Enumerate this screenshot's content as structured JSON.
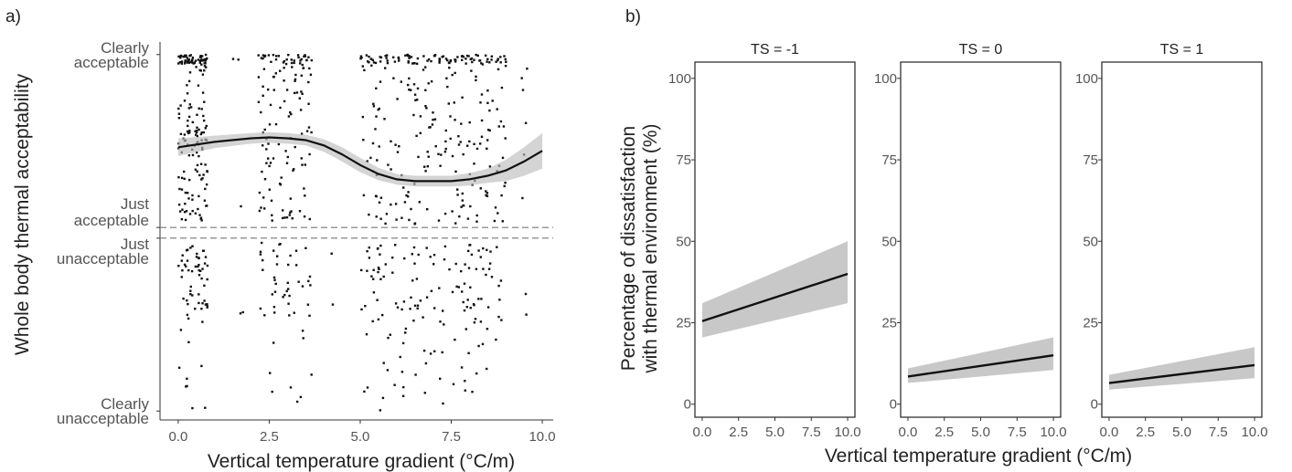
{
  "figure": {
    "panel_a_tag": "a)",
    "panel_b_tag": "b)"
  },
  "chart_data": [
    {
      "type": "scatter",
      "panel": "a)",
      "xlabel": "Vertical temperature gradient (°C/m)",
      "ylabel": "Whole body thermal acceptability",
      "xlim": [
        -0.5,
        10.3
      ],
      "xticks": [
        0.0,
        2.5,
        5.0,
        7.5,
        10.0
      ],
      "xtick_labels": [
        "0.0",
        "2.5",
        "5.0",
        "7.5",
        "10.0"
      ],
      "ylim": [
        -1.05,
        1.05
      ],
      "y_levels": [
        {
          "line1": "Clearly",
          "line2": "acceptable",
          "value": 1.0
        },
        {
          "line1": "Just",
          "line2": "acceptable",
          "value": 0.03
        },
        {
          "line1": "Just",
          "line2": "unacceptable",
          "value": -0.03
        },
        {
          "line1": "Clearly",
          "line2": "unacceptable",
          "value": -1.0
        }
      ],
      "dashed_lines": [
        0.03,
        -0.03
      ],
      "point_clusters": [
        {
          "xmin": 0.0,
          "xmax": 0.8,
          "count": 230
        },
        {
          "xmin": 1.5,
          "xmax": 1.8,
          "count": 5
        },
        {
          "xmin": 2.2,
          "xmax": 3.7,
          "count": 180
        },
        {
          "xmin": 4.2,
          "xmax": 4.4,
          "count": 2
        },
        {
          "xmin": 5.0,
          "xmax": 9.0,
          "count": 420
        },
        {
          "xmin": 9.3,
          "xmax": 9.6,
          "count": 8
        }
      ],
      "smooth": {
        "x": [
          0.0,
          1.0,
          2.0,
          2.5,
          3.0,
          3.5,
          4.0,
          4.5,
          5.0,
          5.5,
          6.0,
          6.5,
          7.0,
          7.5,
          8.0,
          8.5,
          9.0,
          9.5,
          10.0
        ],
        "y": [
          0.48,
          0.51,
          0.53,
          0.535,
          0.53,
          0.52,
          0.49,
          0.44,
          0.38,
          0.33,
          0.3,
          0.29,
          0.29,
          0.29,
          0.3,
          0.32,
          0.35,
          0.4,
          0.46
        ],
        "ci_half": [
          0.05,
          0.035,
          0.03,
          0.03,
          0.03,
          0.03,
          0.035,
          0.04,
          0.04,
          0.035,
          0.03,
          0.03,
          0.03,
          0.03,
          0.035,
          0.04,
          0.06,
          0.08,
          0.1
        ]
      }
    },
    {
      "type": "line",
      "panel": "b)",
      "xlabel": "Vertical temperature gradient (°C/m)",
      "ylabel_line1": "Percentage of dissatisfaction",
      "ylabel_line2": "with thermal environment (%)",
      "xlim": [
        -0.5,
        10.5
      ],
      "ylim": [
        -4,
        105
      ],
      "xticks": [
        0.0,
        2.5,
        5.0,
        7.5,
        10.0
      ],
      "xtick_labels": [
        "0.0",
        "2.5",
        "5.0",
        "7.5",
        "10.0"
      ],
      "yticks": [
        0,
        25,
        50,
        75,
        100
      ],
      "ytick_labels": [
        "0",
        "25",
        "50",
        "75",
        "100"
      ],
      "facets": [
        {
          "label": "TS = -1",
          "x": [
            0,
            10
          ],
          "y": [
            25.5,
            40
          ],
          "lower": [
            20.5,
            31
          ],
          "upper": [
            31,
            50
          ]
        },
        {
          "label": "TS = 0",
          "x": [
            0,
            10
          ],
          "y": [
            8.5,
            15
          ],
          "lower": [
            6.5,
            10.5
          ],
          "upper": [
            11,
            20.5
          ]
        },
        {
          "label": "TS = 1",
          "x": [
            0,
            10
          ],
          "y": [
            6.5,
            12
          ],
          "lower": [
            4.5,
            8
          ],
          "upper": [
            9,
            17.5
          ]
        }
      ]
    }
  ]
}
